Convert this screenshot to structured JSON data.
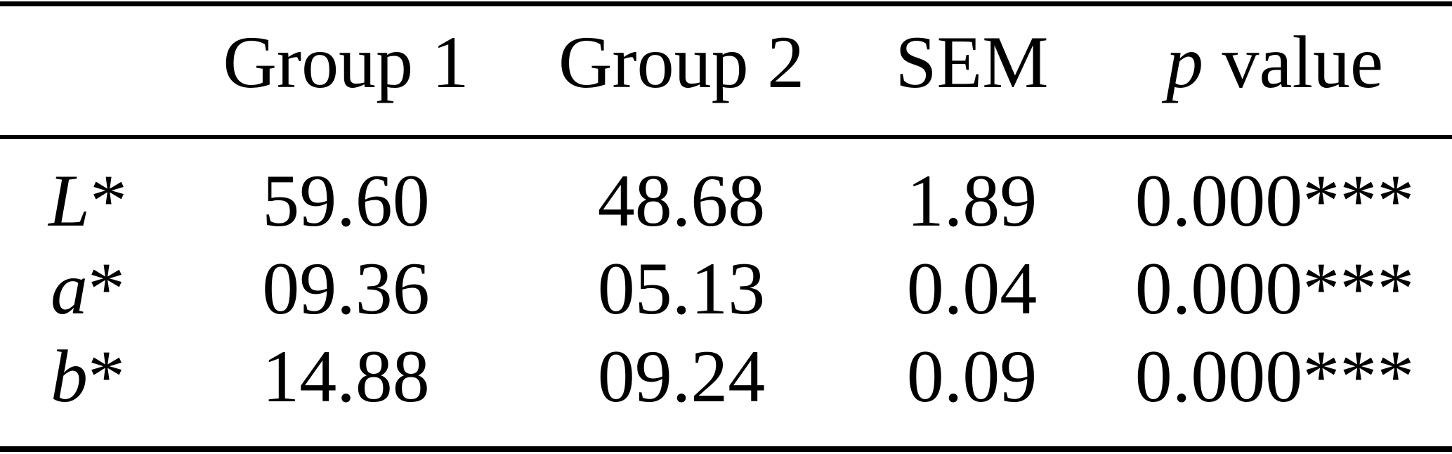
{
  "page": {
    "background_color": "#ffffff",
    "text_color": "#000000",
    "rule_color": "#000000"
  },
  "table": {
    "header": {
      "row_label": "",
      "group1": "Group 1",
      "group2": "Group 2",
      "sem": "SEM",
      "p_italic": "p",
      "p_rest": " value"
    },
    "rows": [
      {
        "label": "L",
        "star": "*",
        "group1": "59.60",
        "group2": "48.68",
        "sem": "1.89",
        "p": "0.000",
        "significance": "***"
      },
      {
        "label": "a",
        "star": "*",
        "group1": "09.36",
        "group2": "05.13",
        "sem": "0.04",
        "p": "0.000",
        "significance": "***"
      },
      {
        "label": "b",
        "star": "*",
        "group1": "14.88",
        "group2": "09.24",
        "sem": "0.09",
        "p": "0.000",
        "significance": "***"
      }
    ]
  }
}
